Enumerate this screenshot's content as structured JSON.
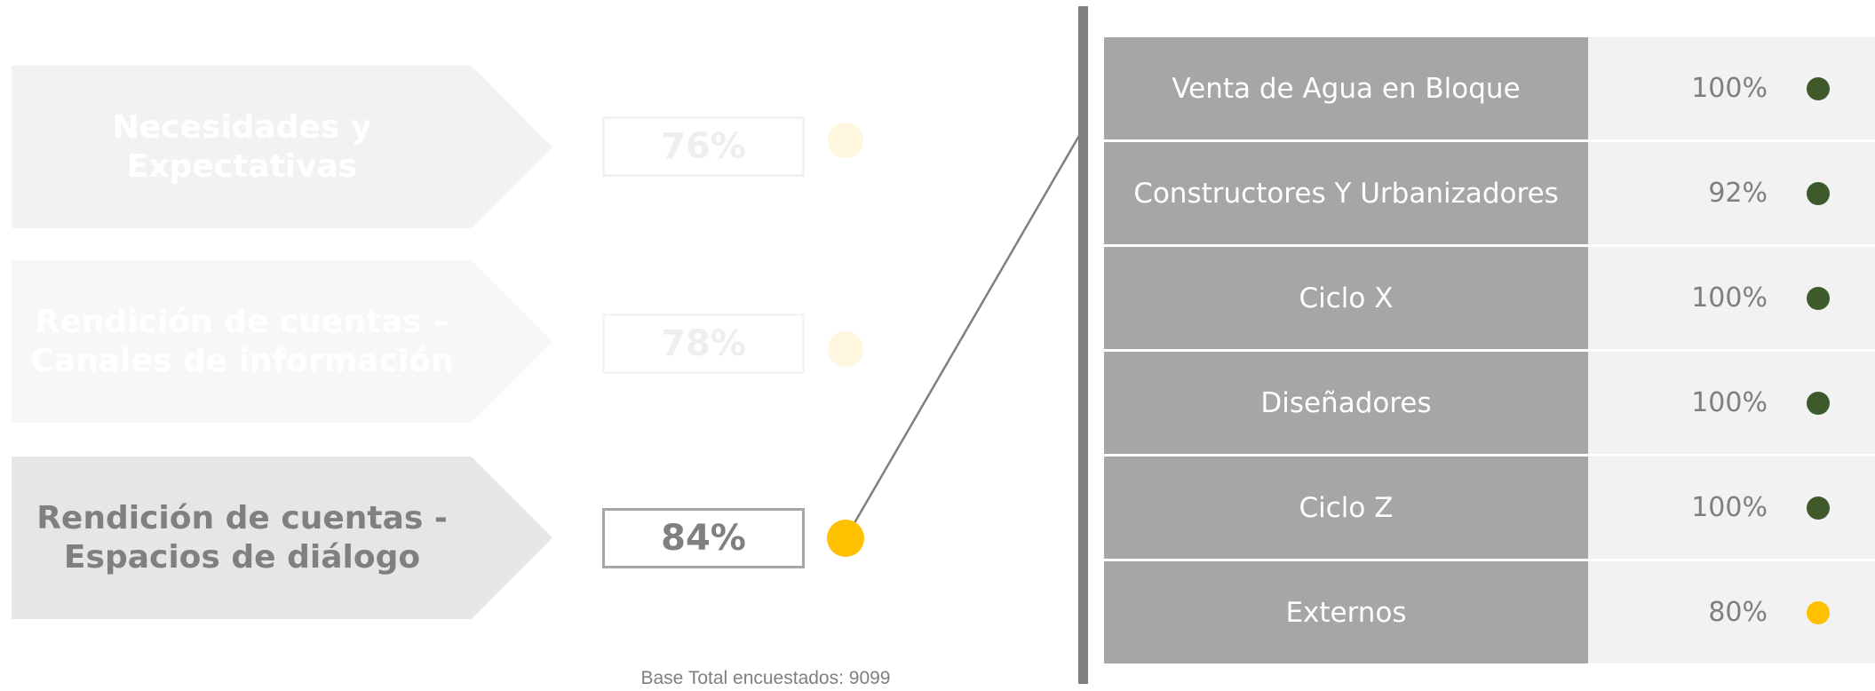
{
  "left": {
    "items": [
      {
        "label": "Necesidades y Expectativas",
        "value": "76%"
      },
      {
        "label": "Rendición de cuentas – Canales de información",
        "value": "78%"
      },
      {
        "label": "Rendición de cuentas - Espacios de diálogo",
        "value": "84%"
      }
    ],
    "footnote": "Base Total encuestados: 9099"
  },
  "table": {
    "rows": [
      {
        "name": "Venta de Agua en Bloque",
        "value": "100%",
        "color": "#3e5a2a"
      },
      {
        "name": "Constructores Y Urbanizadores",
        "value": "92%",
        "color": "#3e5a2a"
      },
      {
        "name": "Ciclo X",
        "value": "100%",
        "color": "#3e5a2a"
      },
      {
        "name": "Diseñadores",
        "value": "100%",
        "color": "#3e5a2a"
      },
      {
        "name": "Ciclo Z",
        "value": "100%",
        "color": "#3e5a2a"
      },
      {
        "name": "Externos",
        "value": "80%",
        "color": "#ffc000"
      }
    ]
  }
}
